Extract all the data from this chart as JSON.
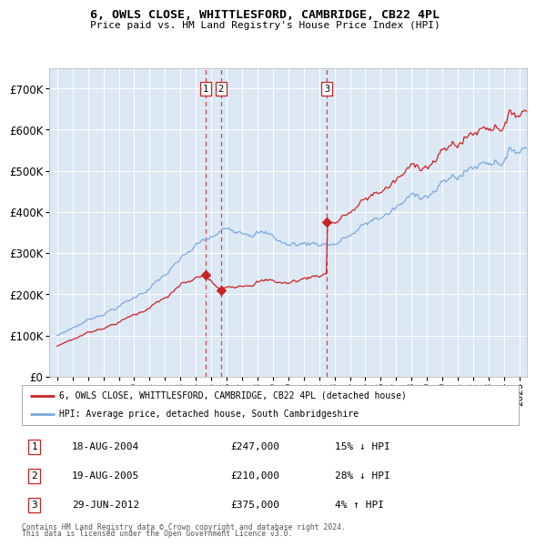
{
  "title": "6, OWLS CLOSE, WHITTLESFORD, CAMBRIDGE, CB22 4PL",
  "subtitle": "Price paid vs. HM Land Registry's House Price Index (HPI)",
  "legend_line1": "6, OWLS CLOSE, WHITTLESFORD, CAMBRIDGE, CB22 4PL (detached house)",
  "legend_line2": "HPI: Average price, detached house, South Cambridgeshire",
  "footer1": "Contains HM Land Registry data © Crown copyright and database right 2024.",
  "footer2": "This data is licensed under the Open Government Licence v3.0.",
  "transactions": [
    {
      "id": 1,
      "date": "18-AUG-2004",
      "price": 247000,
      "rel": "15% ↓ HPI"
    },
    {
      "id": 2,
      "date": "19-AUG-2005",
      "price": 210000,
      "rel": "28% ↓ HPI"
    },
    {
      "id": 3,
      "date": "29-JUN-2012",
      "price": 375000,
      "rel": "4% ↑ HPI"
    }
  ],
  "sale_dates_decimal": [
    2004.63,
    2005.63,
    2012.49
  ],
  "sale_prices": [
    247000,
    210000,
    375000
  ],
  "hpi_line_color": "#7aaadd",
  "price_line_color": "#cc2222",
  "sale_marker_color": "#cc2222",
  "dashed_line_color": "#cc3333",
  "background_color": "#dde8f5",
  "ylim": [
    0,
    750000
  ],
  "yticks": [
    0,
    100000,
    200000,
    300000,
    400000,
    500000,
    600000,
    700000
  ],
  "xlim_start": 1994.5,
  "xlim_end": 2025.5,
  "xticks": [
    1995,
    1996,
    1997,
    1998,
    1999,
    2000,
    2001,
    2002,
    2003,
    2004,
    2005,
    2006,
    2007,
    2008,
    2009,
    2010,
    2011,
    2012,
    2013,
    2014,
    2015,
    2016,
    2017,
    2018,
    2019,
    2020,
    2021,
    2022,
    2023,
    2024,
    2025
  ]
}
